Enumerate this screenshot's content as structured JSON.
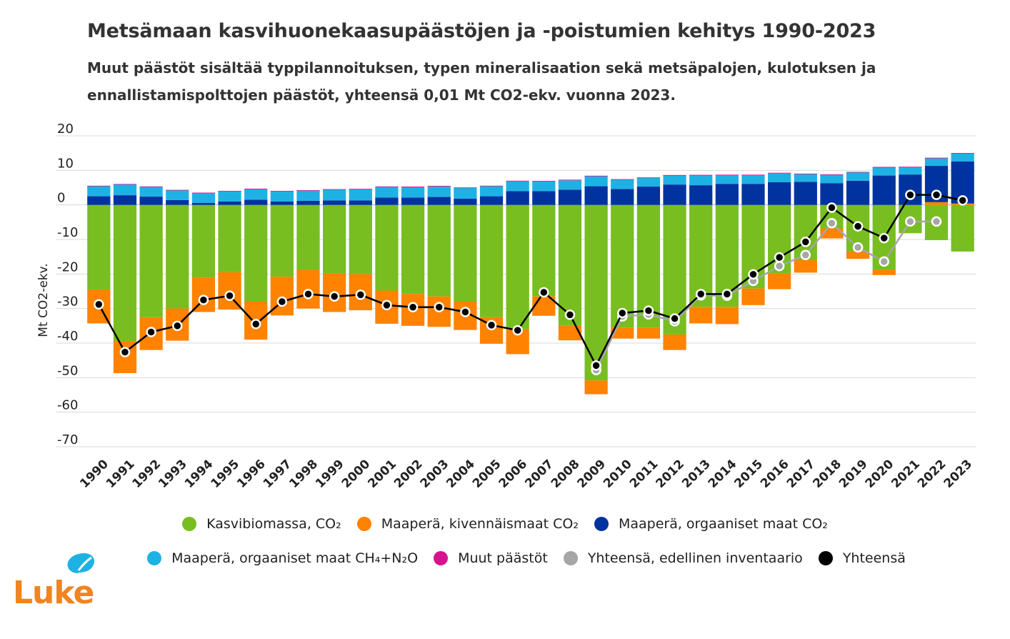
{
  "title": "Metsämaan kasvihuonekaasupäästöjen ja -poistumien kehitys 1990-2023",
  "subtitle": "Muut päästöt sisältää typpilannoituksen, typen mineralisaation sekä metsäpalojen, kulotuksen ja ennallistamispolttojen päästöt, yhteensä 0,01 Mt CO2-ekv. vuonna 2023.",
  "logo_text": "Luke",
  "colors": {
    "biomass": "#78be20",
    "mineral": "#ff8200",
    "organic_co2": "#0033a0",
    "organic_ch4": "#1eb2e4",
    "other": "#d6138d",
    "prev_total": "#a6a6a6",
    "total": "#000000",
    "grid": "#d9d9d9"
  },
  "legend": [
    {
      "label": "Kasvibiomassa, CO₂",
      "color": "#78be20"
    },
    {
      "label": "Maaperä, kivennäismaat CO₂",
      "color": "#ff8200"
    },
    {
      "label": "Maaperä, orgaaniset maat CO₂",
      "color": "#0033a0"
    },
    {
      "label": "Maaperä, orgaaniset maat CH₄+N₂O",
      "color": "#1eb2e4"
    },
    {
      "label": "Muut päästöt",
      "color": "#d6138d"
    },
    {
      "label": "Yhteensä, edellinen inventaario",
      "color": "#a6a6a6"
    },
    {
      "label": "Yhteensä",
      "color": "#000000"
    }
  ],
  "chart_data": {
    "type": "bar",
    "stacked": true,
    "title": "Metsämaan kasvihuonekaasupäästöjen ja -poistumien kehitys 1990-2023",
    "ylabel": "Mt CO2-ekv.",
    "xlabel": "",
    "ylim": [
      -70,
      20
    ],
    "yticks": [
      20,
      10,
      0,
      -10,
      -20,
      -30,
      -40,
      -50,
      -60,
      -70
    ],
    "categories": [
      "1990",
      "1991",
      "1992",
      "1993",
      "1994",
      "1995",
      "1996",
      "1997",
      "1998",
      "1999",
      "2000",
      "2001",
      "2002",
      "2003",
      "2004",
      "2005",
      "2006",
      "2007",
      "2008",
      "2009",
      "2010",
      "2011",
      "2012",
      "2013",
      "2014",
      "2015",
      "2016",
      "2017",
      "2018",
      "2019",
      "2020",
      "2021",
      "2022",
      "2023"
    ],
    "series": [
      {
        "name": "Kasvibiomassa, CO₂",
        "kind": "bar",
        "values": [
          -24.5,
          -39.5,
          -32.5,
          -30.0,
          -21.0,
          -19.5,
          -28.0,
          -20.8,
          -18.8,
          -19.8,
          -20.0,
          -24.8,
          -25.8,
          -26.5,
          -28.0,
          -32.5,
          -36.0,
          -26.5,
          -35.0,
          -50.8,
          -35.5,
          -35.5,
          -37.5,
          -29.5,
          -29.5,
          -24.2,
          -19.8,
          -16.0,
          -6.8,
          -13.5,
          -18.8,
          -8.2,
          -10.2,
          -13.5
        ]
      },
      {
        "name": "Maaperä, kivennäismaat CO₂",
        "kind": "bar",
        "values": [
          -9.8,
          -9.2,
          -9.5,
          -9.3,
          -10.0,
          -10.8,
          -11.0,
          -11.2,
          -11.2,
          -11.2,
          -10.5,
          -9.6,
          -9.2,
          -8.8,
          -8.2,
          -7.7,
          -7.2,
          -5.6,
          -4.2,
          -4.0,
          -3.2,
          -3.2,
          -4.5,
          -4.8,
          -5.0,
          -4.8,
          -4.6,
          -3.6,
          -2.9,
          -2.1,
          -1.5,
          0.0,
          0.8,
          0.4
        ]
      },
      {
        "name": "Maaperä, orgaaniset maat CO₂",
        "kind": "bar",
        "values": [
          2.5,
          2.8,
          2.4,
          1.4,
          0.6,
          1.0,
          1.5,
          1.0,
          1.2,
          1.3,
          1.3,
          2.1,
          2.1,
          2.3,
          1.8,
          2.5,
          4.0,
          4.0,
          4.4,
          5.4,
          4.6,
          5.3,
          5.9,
          5.7,
          6.1,
          6.1,
          6.6,
          6.7,
          6.3,
          7.0,
          8.5,
          8.8,
          10.5,
          12.2
        ]
      },
      {
        "name": "Maaperä, orgaaniset maat CH₄+N₂O",
        "kind": "bar",
        "values": [
          3.0,
          3.2,
          2.9,
          2.9,
          2.9,
          3.0,
          3.0,
          3.0,
          3.0,
          3.2,
          3.3,
          3.2,
          3.0,
          3.0,
          3.2,
          3.0,
          2.8,
          2.9,
          2.7,
          3.0,
          2.8,
          2.6,
          2.7,
          2.8,
          2.6,
          2.6,
          2.5,
          2.3,
          2.5,
          2.5,
          2.3,
          2.2,
          2.3,
          2.4
        ]
      },
      {
        "name": "Muut päästöt",
        "kind": "bar",
        "values": [
          0.05,
          0.05,
          0.05,
          0.05,
          0.05,
          0.05,
          0.2,
          0.05,
          0.05,
          0.05,
          0.05,
          0.05,
          0.2,
          0.2,
          0.05,
          0.05,
          0.2,
          0.05,
          0.2,
          0.05,
          0.05,
          0.05,
          0.05,
          0.2,
          0.05,
          0.05,
          0.2,
          0.05,
          0.05,
          0.05,
          0.2,
          0.05,
          0.05,
          0.01
        ]
      },
      {
        "name": "Yhteensä, edellinen inventaario",
        "kind": "line",
        "values": [
          null,
          null,
          null,
          null,
          null,
          null,
          null,
          null,
          null,
          null,
          null,
          null,
          null,
          null,
          null,
          null,
          null,
          null,
          null,
          -47.8,
          -32.3,
          -31.7,
          -33.7,
          -26.2,
          -26.3,
          -22.0,
          -17.7,
          -14.5,
          -5.3,
          -12.3,
          -16.4,
          -4.8,
          -4.8,
          null
        ]
      },
      {
        "name": "Yhteensä",
        "kind": "line",
        "values": [
          -28.8,
          -42.6,
          -36.8,
          -35.0,
          -27.5,
          -26.3,
          -34.5,
          -28.0,
          -25.8,
          -26.5,
          -26.0,
          -29.0,
          -29.6,
          -29.6,
          -31.0,
          -34.8,
          -36.3,
          -25.3,
          -31.8,
          -46.5,
          -31.3,
          -30.6,
          -32.9,
          -25.8,
          -25.8,
          -20.1,
          -15.2,
          -10.7,
          -0.8,
          -6.2,
          -9.6,
          2.9,
          2.9,
          1.3
        ]
      }
    ]
  }
}
